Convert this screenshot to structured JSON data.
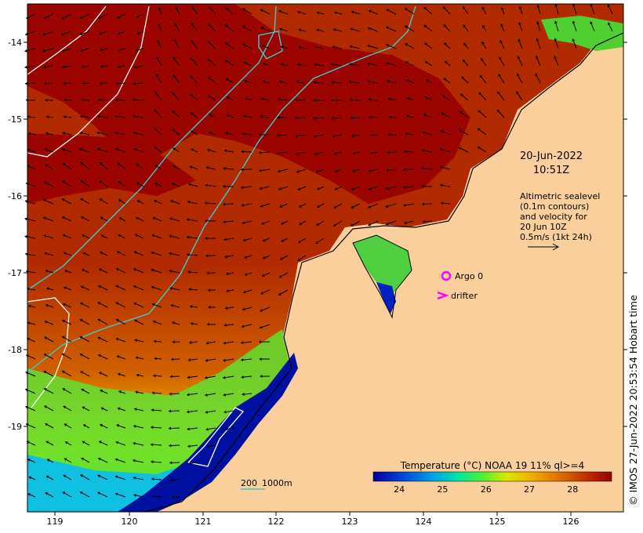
{
  "map": {
    "x_ticks": [
      "119",
      "120",
      "121",
      "122",
      "123",
      "124",
      "125",
      "126"
    ],
    "y_ticks": [
      "-14",
      "-15",
      "-16",
      "-17",
      "-18",
      "-19"
    ]
  },
  "annotation": {
    "date": "20-Jun-2022",
    "time": "10:51Z",
    "sealevel_lines": [
      "Altimetric sealevel",
      "(0.1m contours)",
      "and velocity for",
      "20 Jun 10Z",
      "0.5m/s (1kt 24h)"
    ]
  },
  "legend": {
    "argo_label": "Argo 0",
    "drifter_label": "drifter",
    "marker_color": "#ff00ff"
  },
  "depth_legend": {
    "label_200": "200",
    "label_1000": "1000m",
    "color": "#40c8d0"
  },
  "colorbar": {
    "title": "Temperature (°C) NOAA 19 11% ql>=4",
    "ticks": [
      "24",
      "25",
      "26",
      "27",
      "28"
    ],
    "range": [
      23.4,
      28.9
    ],
    "colors": [
      "#00009a",
      "#0044d8",
      "#00a0e8",
      "#00e8a0",
      "#50f030",
      "#d8e800",
      "#f0b000",
      "#e07000",
      "#c03000",
      "#960000"
    ]
  },
  "credit": "© IMOS 27-Jun-2022 20:53:54 Hobart time",
  "colors": {
    "land": "#fbcf9b",
    "sst_warm": "#b52d00",
    "sst_hot": "#9c0400"
  }
}
